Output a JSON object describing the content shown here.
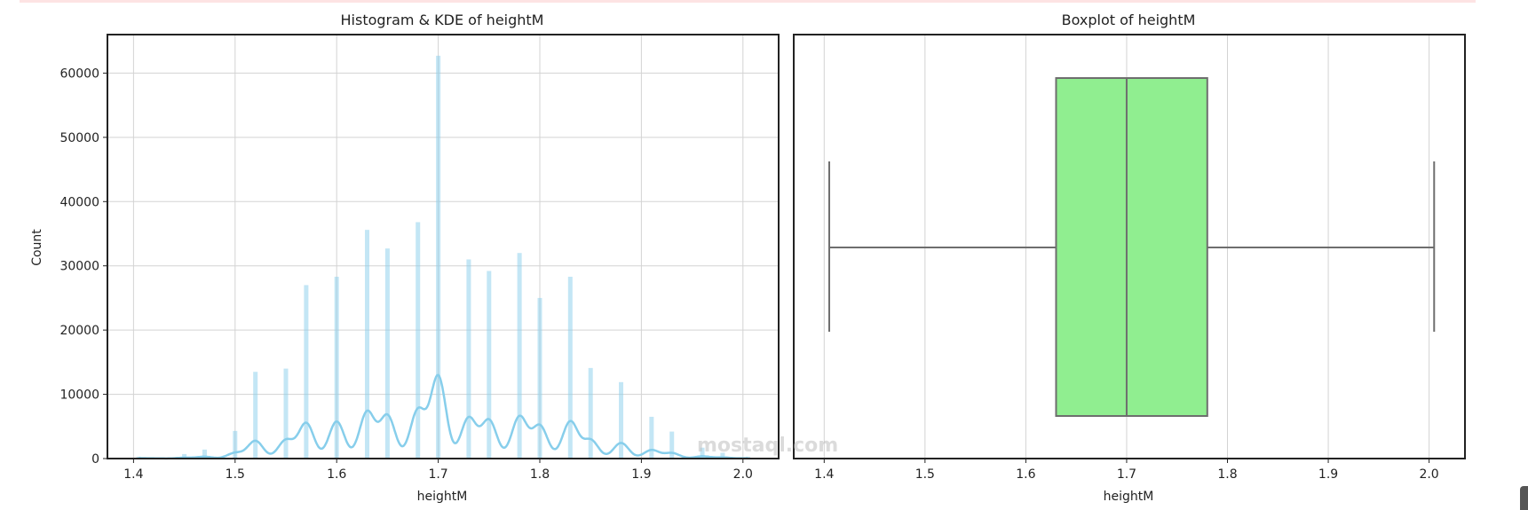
{
  "chart_data": [
    {
      "type": "bar",
      "title": "Histogram & KDE of heightM",
      "xlabel": "heightM",
      "ylabel": "Count",
      "xlim": [
        1.375,
        2.035
      ],
      "ylim": [
        0,
        66000
      ],
      "xticks": [
        "1.4",
        "1.5",
        "1.6",
        "1.7",
        "1.8",
        "1.9",
        "2.0"
      ],
      "yticks": [
        "0",
        "10000",
        "20000",
        "30000",
        "40000",
        "50000",
        "60000"
      ],
      "grid": true,
      "bar_color": "#87ceeb",
      "kde_color": "#87ceeb",
      "x": [
        1.405,
        1.42,
        1.45,
        1.47,
        1.5,
        1.52,
        1.55,
        1.57,
        1.6,
        1.63,
        1.65,
        1.68,
        1.7,
        1.73,
        1.75,
        1.78,
        1.8,
        1.83,
        1.85,
        1.88,
        1.91,
        1.93,
        1.96,
        1.98,
        2.005
      ],
      "values": [
        300,
        200,
        700,
        1400,
        4300,
        13500,
        14000,
        27000,
        28300,
        35600,
        32700,
        36800,
        62700,
        31000,
        29200,
        32000,
        25000,
        28300,
        14100,
        11900,
        6500,
        4200,
        1700,
        900,
        300
      ]
    },
    {
      "type": "boxplot",
      "title": "Boxplot of heightM",
      "xlabel": "heightM",
      "xlim": [
        1.368,
        2.03
      ],
      "xticks": [
        "1.4",
        "1.5",
        "1.6",
        "1.7",
        "1.8",
        "1.9",
        "2.0"
      ],
      "grid": true,
      "box_color": "#90ee90",
      "line_color": "#6e6e6e",
      "whisker_low": 1.405,
      "q1": 1.63,
      "median": 1.7,
      "q3": 1.78,
      "whisker_high": 2.005
    }
  ],
  "watermark": "mostaql.com"
}
